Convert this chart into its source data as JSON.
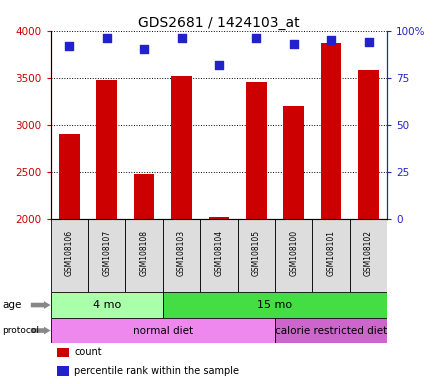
{
  "title": "GDS2681 / 1424103_at",
  "samples": [
    "GSM108106",
    "GSM108107",
    "GSM108108",
    "GSM108103",
    "GSM108104",
    "GSM108105",
    "GSM108100",
    "GSM108101",
    "GSM108102"
  ],
  "counts": [
    2900,
    3480,
    2470,
    3520,
    2020,
    3450,
    3200,
    3870,
    3580
  ],
  "percentiles": [
    92,
    96,
    90,
    96,
    82,
    96,
    93,
    95,
    94
  ],
  "ylim": [
    2000,
    4000
  ],
  "yticks": [
    2000,
    2500,
    3000,
    3500,
    4000
  ],
  "right_yticks": [
    0,
    25,
    50,
    75,
    100
  ],
  "right_ytick_labels": [
    "0",
    "25",
    "50",
    "75",
    "100%"
  ],
  "bar_color": "#cc0000",
  "dot_color": "#2222cc",
  "label_bg": "#cccccc",
  "age_groups": [
    {
      "label": "4 mo",
      "start": 0,
      "end": 2,
      "color": "#aaffaa"
    },
    {
      "label": "15 mo",
      "start": 3,
      "end": 8,
      "color": "#44dd44"
    }
  ],
  "protocol_groups": [
    {
      "label": "normal diet",
      "start": 0,
      "end": 5,
      "color": "#ee88ee"
    },
    {
      "label": "calorie restricted diet",
      "start": 6,
      "end": 8,
      "color": "#cc66cc"
    }
  ],
  "legend_items": [
    {
      "label": "count",
      "color": "#cc0000"
    },
    {
      "label": "percentile rank within the sample",
      "color": "#2222cc"
    }
  ]
}
